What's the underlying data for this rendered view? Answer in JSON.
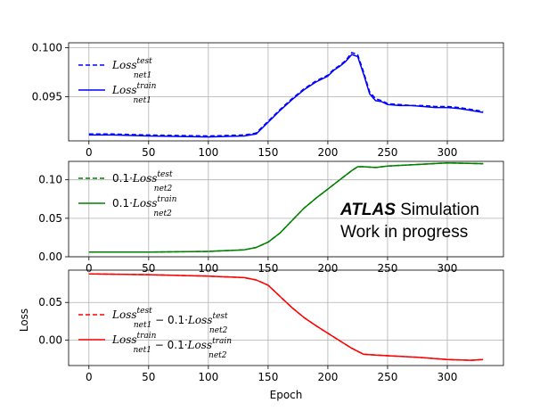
{
  "colors": {
    "top": "#0000ff",
    "middle": "#008000",
    "bottom": "#ff0000"
  },
  "xlabel": "Epoch",
  "ylabel": "Loss",
  "atlas_label": {
    "bold": "ATLAS",
    "rest": " Simulation",
    "line2": "Work in progress"
  },
  "chart_data": [
    {
      "type": "line",
      "x_ticks": [
        0,
        50,
        100,
        150,
        200,
        250,
        300
      ],
      "y_ticks": [
        "0.095",
        "0.100"
      ],
      "xlim": [
        -17,
        347
      ],
      "ylim": [
        0.0905,
        0.1005
      ],
      "grid": true,
      "legend_placement": "top-left",
      "series": [
        {
          "name": "Loss_net1^test",
          "legend_parts": [
            {
              "t": "Loss",
              "type": "it"
            },
            {
              "t": "test",
              "type": "sup"
            },
            {
              "t": "net1",
              "type": "sub"
            }
          ],
          "style": "dashed",
          "x": [
            0,
            20,
            50,
            100,
            130,
            140,
            150,
            160,
            170,
            180,
            190,
            200,
            205,
            210,
            215,
            220,
            225,
            230,
            235,
            240,
            245,
            250,
            260,
            270,
            280,
            290,
            300,
            310,
            320,
            330
          ],
          "y": [
            0.0912,
            0.0912,
            0.0911,
            0.091,
            0.0911,
            0.0913,
            0.0925,
            0.0937,
            0.0948,
            0.0958,
            0.0966,
            0.0972,
            0.0978,
            0.0982,
            0.0987,
            0.0995,
            0.0993,
            0.0975,
            0.0955,
            0.0948,
            0.0946,
            0.0943,
            0.0942,
            0.0941,
            0.0941,
            0.094,
            0.094,
            0.0939,
            0.0937,
            0.0935
          ]
        },
        {
          "name": "Loss_net1^train",
          "legend_parts": [
            {
              "t": "Loss",
              "type": "it"
            },
            {
              "t": "train",
              "type": "sup"
            },
            {
              "t": "net1",
              "type": "sub"
            }
          ],
          "style": "solid",
          "x": [
            0,
            20,
            50,
            100,
            130,
            140,
            150,
            160,
            170,
            180,
            190,
            200,
            205,
            210,
            215,
            220,
            225,
            230,
            235,
            240,
            245,
            250,
            260,
            270,
            280,
            290,
            300,
            310,
            320,
            330
          ],
          "y": [
            0.0911,
            0.0911,
            0.091,
            0.0909,
            0.091,
            0.0912,
            0.0924,
            0.0936,
            0.0947,
            0.0957,
            0.0965,
            0.0971,
            0.0977,
            0.0981,
            0.0986,
            0.0993,
            0.0991,
            0.0973,
            0.0953,
            0.0946,
            0.0945,
            0.0942,
            0.0941,
            0.0941,
            0.094,
            0.0939,
            0.0939,
            0.0938,
            0.0936,
            0.0934
          ]
        }
      ]
    },
    {
      "type": "line",
      "x_ticks": [
        0,
        50,
        100,
        150,
        200,
        250,
        300
      ],
      "y_ticks": [
        "0.00",
        "0.05",
        "0.10"
      ],
      "xlim": [
        -17,
        347
      ],
      "ylim": [
        0.0,
        0.124
      ],
      "grid": true,
      "legend_placement": "top-left",
      "series": [
        {
          "name": "0.1·Loss_net2^test",
          "legend_parts": [
            {
              "t": "0.1·",
              "type": "n"
            },
            {
              "t": "Loss",
              "type": "it"
            },
            {
              "t": "test",
              "type": "sup"
            },
            {
              "t": "net2",
              "type": "sub"
            }
          ],
          "style": "dashed",
          "x": [
            0,
            50,
            100,
            130,
            140,
            150,
            160,
            170,
            180,
            190,
            200,
            210,
            220,
            225,
            230,
            240,
            250,
            275,
            300,
            330
          ],
          "y": [
            0.006,
            0.006,
            0.007,
            0.009,
            0.012,
            0.019,
            0.031,
            0.047,
            0.063,
            0.076,
            0.088,
            0.1,
            0.112,
            0.117,
            0.117,
            0.116,
            0.118,
            0.12,
            0.122,
            0.121
          ]
        },
        {
          "name": "0.1·Loss_net2^train",
          "legend_parts": [
            {
              "t": "0.1·",
              "type": "n"
            },
            {
              "t": "Loss",
              "type": "it"
            },
            {
              "t": "train",
              "type": "sup"
            },
            {
              "t": "net2",
              "type": "sub"
            }
          ],
          "style": "solid",
          "x": [
            0,
            50,
            100,
            130,
            140,
            150,
            160,
            170,
            180,
            190,
            200,
            210,
            220,
            225,
            230,
            240,
            250,
            275,
            300,
            330
          ],
          "y": [
            0.006,
            0.006,
            0.007,
            0.009,
            0.012,
            0.019,
            0.031,
            0.047,
            0.063,
            0.076,
            0.088,
            0.1,
            0.112,
            0.117,
            0.117,
            0.116,
            0.118,
            0.12,
            0.122,
            0.121
          ]
        }
      ]
    },
    {
      "type": "line",
      "x_ticks": [
        0,
        50,
        100,
        150,
        200,
        250,
        300
      ],
      "y_ticks": [
        "0.00",
        "0.05"
      ],
      "xlim": [
        -17,
        347
      ],
      "ylim": [
        -0.034,
        0.093
      ],
      "grid": true,
      "legend_placement": "lower-left",
      "series": [
        {
          "name": "Loss_net1^test − 0.1·Loss_net2^test",
          "legend_parts": [
            {
              "t": "Loss",
              "type": "it"
            },
            {
              "t": "test",
              "type": "sup"
            },
            {
              "t": "net1",
              "type": "sub"
            },
            {
              "t": " − 0.1·",
              "type": "n"
            },
            {
              "t": "Loss",
              "type": "it"
            },
            {
              "t": "test",
              "type": "sup"
            },
            {
              "t": "net2",
              "type": "sub"
            }
          ],
          "style": "dashed",
          "x": [
            0,
            50,
            100,
            130,
            140,
            150,
            160,
            170,
            180,
            190,
            200,
            210,
            220,
            230,
            240,
            250,
            275,
            300,
            320,
            330
          ],
          "y": [
            0.088,
            0.087,
            0.085,
            0.083,
            0.08,
            0.073,
            0.058,
            0.043,
            0.03,
            0.019,
            0.009,
            -0.001,
            -0.011,
            -0.019,
            -0.02,
            -0.021,
            -0.023,
            -0.026,
            -0.027,
            -0.026
          ]
        },
        {
          "name": "Loss_net1^train − 0.1·Loss_net2^train",
          "legend_parts": [
            {
              "t": "Loss",
              "type": "it"
            },
            {
              "t": "train",
              "type": "sup"
            },
            {
              "t": "net1",
              "type": "sub"
            },
            {
              "t": " − 0.1·",
              "type": "n"
            },
            {
              "t": "Loss",
              "type": "it"
            },
            {
              "t": "train",
              "type": "sup"
            },
            {
              "t": "net2",
              "type": "sub"
            }
          ],
          "style": "solid",
          "x": [
            0,
            50,
            100,
            130,
            140,
            150,
            160,
            170,
            180,
            190,
            200,
            210,
            220,
            230,
            240,
            250,
            275,
            300,
            320,
            330
          ],
          "y": [
            0.088,
            0.087,
            0.085,
            0.083,
            0.08,
            0.073,
            0.058,
            0.043,
            0.03,
            0.019,
            0.009,
            -0.001,
            -0.011,
            -0.019,
            -0.02,
            -0.021,
            -0.023,
            -0.026,
            -0.027,
            -0.026
          ]
        }
      ]
    }
  ]
}
